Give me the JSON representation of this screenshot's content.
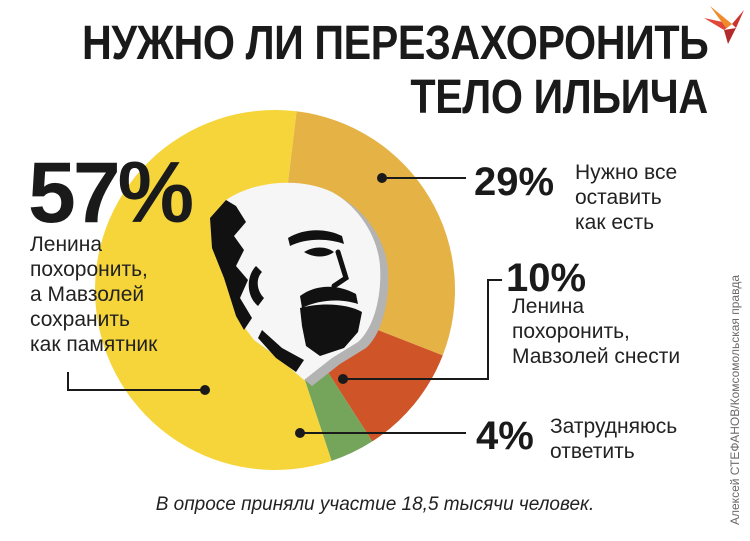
{
  "title": {
    "line1": "НУЖНО ЛИ ПЕРЕЗАХОРОНИТЬ",
    "line2": "ТЕЛО ИЛЬИЧА"
  },
  "footnote": "В опросе приняли участие 18,5 тысячи человек.",
  "credit": "Алексей СТЕФАНОВ/Комсомольская правда",
  "portrait_icon": "lenin-portrait",
  "logo_icon": "kp-bird-logo",
  "chart_data": {
    "type": "pie",
    "unit": "%",
    "slices": [
      {
        "value": 57,
        "label": "57%",
        "lines": [
          "Ленина",
          "похоронить,",
          "а Мавзолей",
          "сохранить",
          "как памятник"
        ],
        "color": "#f5d53a"
      },
      {
        "value": 29,
        "label": "29%",
        "lines": [
          "Нужно все",
          "оставить",
          "как есть"
        ],
        "color": "#e5b246"
      },
      {
        "value": 10,
        "label": "10%",
        "lines": [
          "Ленина",
          "похоронить,",
          "Мавзолей снести"
        ],
        "color": "#cf5427"
      },
      {
        "value": 4,
        "label": "4%",
        "lines": [
          "Затрудняюсь",
          "ответить"
        ],
        "color": "#74a55b"
      }
    ]
  }
}
